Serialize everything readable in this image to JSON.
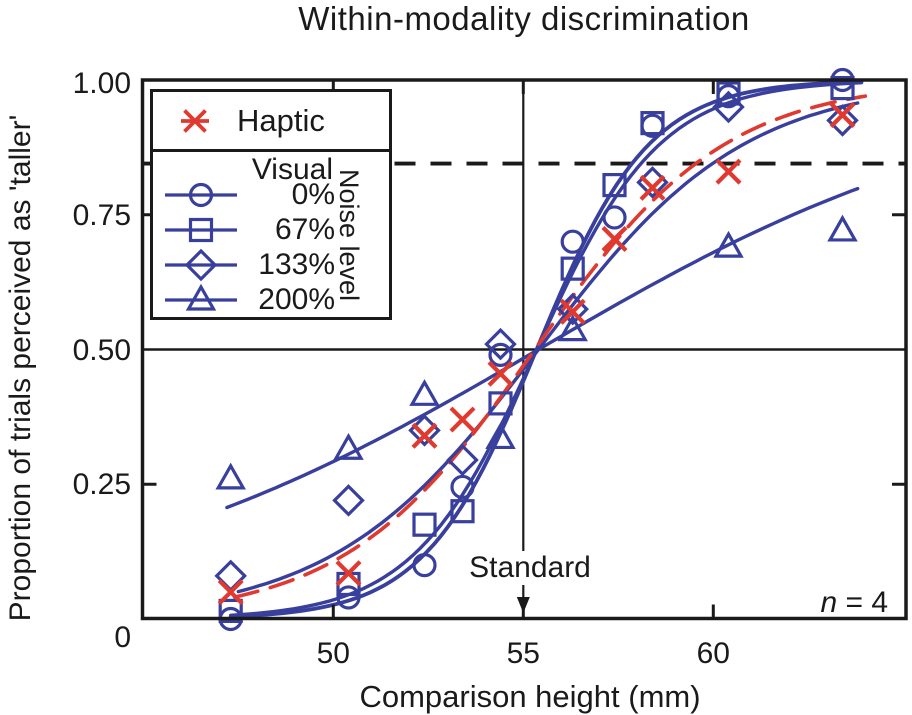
{
  "title": "Within-modality discrimination",
  "colors": {
    "blue": "#383f9c",
    "red": "#e03a30",
    "ink": "#1a1a1a"
  },
  "axes": {
    "x": {
      "label": "Comparison height (mm)",
      "ticks": [
        50,
        55,
        60
      ],
      "min": 45.0,
      "max": 65.1
    },
    "y": {
      "label": "Proportion of trials perceived as 'taller'",
      "tick_labels": [
        "1.00",
        "0.75",
        "0.50",
        "0.25",
        "0"
      ],
      "tick_values": [
        1.0,
        0.75,
        0.5,
        0.25,
        0
      ],
      "side_tick_values": [
        0.75,
        0.25
      ],
      "min": 0,
      "max": 1
    }
  },
  "legend": {
    "haptic_label": "Haptic",
    "visual_label": "Visual",
    "noise_label": "Noise level",
    "items": [
      {
        "marker": "circle",
        "label": "0%"
      },
      {
        "marker": "square",
        "label": "67%"
      },
      {
        "marker": "diamond",
        "label": "133%"
      },
      {
        "marker": "triangle",
        "label": "200%"
      }
    ]
  },
  "annotations": {
    "standard": {
      "label": "Standard",
      "x_mm": 55
    },
    "sample_size": {
      "italic": "n",
      "rest": " = 4"
    },
    "threshold_line_y": 0.845,
    "chance_line_y": 0.5
  },
  "chart_data": {
    "type": "scatter",
    "description": "Psychometric functions: proportion perceived taller vs comparison height; sigmoid fits per condition",
    "title": "Within-modality discrimination",
    "xlabel": "Comparison height (mm)",
    "ylabel": "Proportion of trials perceived as 'taller'",
    "xlim": [
      45.0,
      65.1
    ],
    "ylim": [
      0,
      1
    ],
    "standard_height_mm": 55,
    "x": [
      47.3,
      50.4,
      52.4,
      53.4,
      54.4,
      56.3,
      57.4,
      58.4,
      60.4,
      63.4
    ],
    "series": [
      {
        "name": "Haptic",
        "marker": "x",
        "color": "red",
        "values": [
          0.05,
          0.085,
          0.34,
          0.37,
          0.455,
          0.57,
          0.705,
          0.8,
          0.83,
          0.935
        ],
        "fit": {
          "pse": 55.3,
          "slope": 2.5,
          "style": "dashed",
          "range": [
            47.4,
            64.0
          ],
          "width": 3.6
        }
      },
      {
        "name": "Visual 0% noise",
        "marker": "circle",
        "color": "blue",
        "values": [
          0.0,
          0.04,
          0.1,
          0.245,
          0.49,
          0.7,
          0.745,
          0.915,
          0.97,
          1.0
        ],
        "fit": {
          "pse": 55.35,
          "slope": 1.48,
          "style": "solid",
          "range": [
            47.3,
            63.9
          ],
          "width": 3.8
        }
      },
      {
        "name": "Visual 67% noise",
        "marker": "square",
        "color": "blue",
        "values": [
          0.015,
          0.065,
          0.175,
          0.2,
          0.4,
          0.65,
          0.805,
          0.92,
          0.975,
          0.985
        ],
        "fit": {
          "pse": 55.35,
          "slope": 1.62,
          "style": "solid",
          "range": [
            47.3,
            63.9
          ],
          "width": 3.4
        }
      },
      {
        "name": "Visual 133% noise",
        "marker": "diamond",
        "color": "blue",
        "values": [
          0.08,
          0.22,
          0.35,
          0.295,
          0.51,
          0.575,
          null,
          0.81,
          0.95,
          0.925
        ],
        "fit": {
          "pse": 55.4,
          "slope": 2.7,
          "style": "solid",
          "range": [
            47.5,
            63.8
          ],
          "width": 3.4
        }
      },
      {
        "name": "Visual 200% noise",
        "marker": "triangle",
        "color": "blue",
        "values": [
          0.26,
          0.315,
          0.415,
          null,
          0.335,
          0.535,
          null,
          null,
          0.69,
          0.72
        ],
        "fit": {
          "pse": 55.4,
          "slope": 6.1,
          "style": "solid",
          "range": [
            47.2,
            63.8
          ],
          "width": 3.4
        }
      }
    ]
  }
}
